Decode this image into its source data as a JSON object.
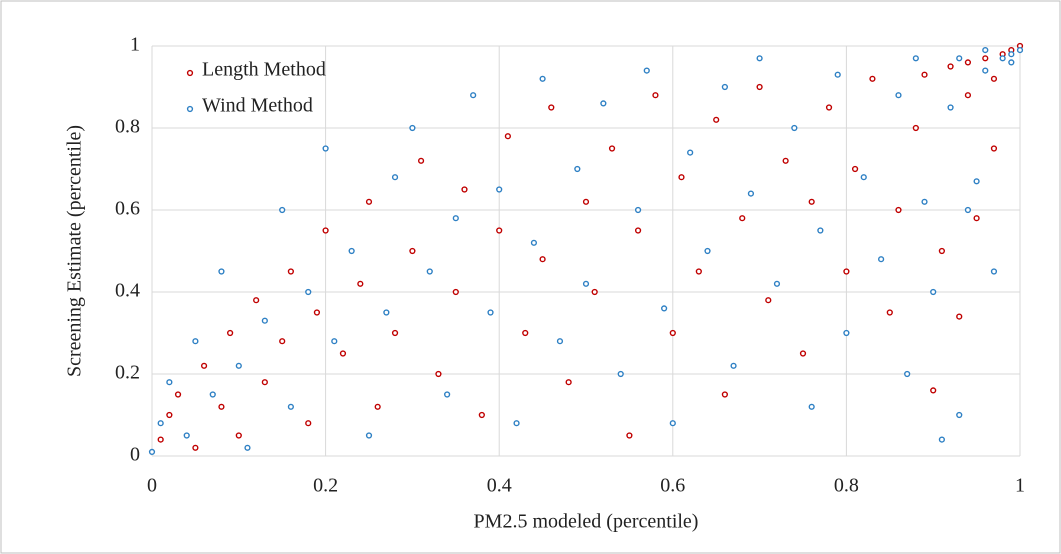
{
  "chart_data": {
    "type": "scatter",
    "x_label": "PM2.5 modeled (percentile)",
    "y_label": "Screening Estimate (percentile)",
    "xlim": [
      0,
      1
    ],
    "ylim": [
      0,
      1
    ],
    "xticks": [
      0,
      0.2,
      0.4,
      0.6,
      0.8,
      1
    ],
    "yticks": [
      0,
      0.2,
      0.4,
      0.6,
      0.8,
      1
    ],
    "grid": true,
    "legend": "upper left",
    "series": [
      {
        "name": "Length Method",
        "color": "#c00000",
        "x": [
          0.01,
          0.02,
          0.03,
          0.05,
          0.06,
          0.08,
          0.09,
          0.1,
          0.12,
          0.13,
          0.15,
          0.16,
          0.18,
          0.19,
          0.2,
          0.22,
          0.24,
          0.25,
          0.26,
          0.28,
          0.3,
          0.31,
          0.33,
          0.35,
          0.36,
          0.38,
          0.4,
          0.41,
          0.43,
          0.45,
          0.46,
          0.48,
          0.5,
          0.51,
          0.53,
          0.55,
          0.56,
          0.58,
          0.6,
          0.61,
          0.63,
          0.65,
          0.66,
          0.68,
          0.7,
          0.71,
          0.73,
          0.75,
          0.76,
          0.78,
          0.8,
          0.81,
          0.83,
          0.85,
          0.86,
          0.88,
          0.9,
          0.91,
          0.92,
          0.93,
          0.94,
          0.95,
          0.96,
          0.97,
          0.98,
          0.99,
          1.0,
          0.97,
          0.94,
          0.89
        ],
        "values": [
          0.04,
          0.1,
          0.15,
          0.02,
          0.22,
          0.12,
          0.3,
          0.05,
          0.38,
          0.18,
          0.28,
          0.45,
          0.08,
          0.35,
          0.55,
          0.25,
          0.42,
          0.62,
          0.12,
          0.3,
          0.5,
          0.72,
          0.2,
          0.4,
          0.65,
          0.1,
          0.55,
          0.78,
          0.3,
          0.48,
          0.85,
          0.18,
          0.62,
          0.4,
          0.75,
          0.05,
          0.55,
          0.88,
          0.3,
          0.68,
          0.45,
          0.82,
          0.15,
          0.58,
          0.9,
          0.38,
          0.72,
          0.25,
          0.62,
          0.85,
          0.45,
          0.7,
          0.92,
          0.35,
          0.6,
          0.8,
          0.16,
          0.5,
          0.95,
          0.34,
          0.88,
          0.58,
          0.97,
          0.75,
          0.98,
          0.99,
          1.0,
          0.92,
          0.96,
          0.93
        ]
      },
      {
        "name": "Wind Method",
        "color": "#2e80c4",
        "x": [
          0.0,
          0.01,
          0.02,
          0.04,
          0.05,
          0.07,
          0.08,
          0.1,
          0.11,
          0.13,
          0.15,
          0.16,
          0.18,
          0.2,
          0.21,
          0.23,
          0.25,
          0.27,
          0.28,
          0.3,
          0.32,
          0.34,
          0.35,
          0.37,
          0.39,
          0.4,
          0.42,
          0.44,
          0.45,
          0.47,
          0.49,
          0.5,
          0.52,
          0.54,
          0.56,
          0.57,
          0.59,
          0.6,
          0.62,
          0.64,
          0.66,
          0.67,
          0.69,
          0.7,
          0.72,
          0.74,
          0.76,
          0.77,
          0.79,
          0.8,
          0.82,
          0.84,
          0.86,
          0.87,
          0.89,
          0.9,
          0.91,
          0.92,
          0.93,
          0.94,
          0.95,
          0.96,
          0.97,
          0.98,
          0.99,
          1.0,
          0.99,
          0.96,
          0.93,
          0.88
        ],
        "values": [
          0.01,
          0.08,
          0.18,
          0.05,
          0.28,
          0.15,
          0.45,
          0.22,
          0.02,
          0.33,
          0.6,
          0.12,
          0.4,
          0.75,
          0.28,
          0.5,
          0.05,
          0.35,
          0.68,
          0.8,
          0.45,
          0.15,
          0.58,
          0.88,
          0.35,
          0.65,
          0.08,
          0.52,
          0.92,
          0.28,
          0.7,
          0.42,
          0.86,
          0.2,
          0.6,
          0.94,
          0.36,
          0.08,
          0.74,
          0.5,
          0.9,
          0.22,
          0.64,
          0.97,
          0.42,
          0.8,
          0.12,
          0.55,
          0.93,
          0.3,
          0.68,
          0.48,
          0.88,
          0.2,
          0.62,
          0.4,
          0.04,
          0.85,
          0.1,
          0.6,
          0.67,
          0.94,
          0.45,
          0.97,
          0.98,
          0.99,
          0.96,
          0.99,
          0.97,
          0.97
        ]
      }
    ]
  }
}
